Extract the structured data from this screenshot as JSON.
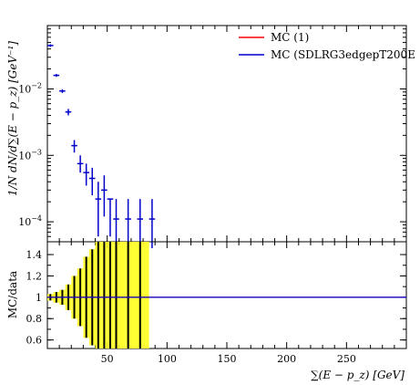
{
  "chart_data": [
    {
      "panel": "main",
      "type": "scatter",
      "ylabel": "1/N dN/d∑(E − p_z) [GeV⁻¹]",
      "yscale": "log",
      "ylim": [
        5e-05,
        0.09
      ],
      "yticks": [
        {
          "value": 0.0001,
          "base": "10",
          "exp": "−4"
        },
        {
          "value": 0.001,
          "base": "10",
          "exp": "−3"
        },
        {
          "value": 0.01,
          "base": "10",
          "exp": "−2"
        }
      ],
      "legend_position": "top-right",
      "series": [
        {
          "name": "MC (1)",
          "color": "#ff0000",
          "points": []
        },
        {
          "name": "MC (SDLRG3edgepT200E",
          "color": "#0000cc",
          "points": [
            {
              "x": 2.5,
              "xerr": 2.5,
              "y": 0.045,
              "ylo": 0.043,
              "yhi": 0.047
            },
            {
              "x": 7.5,
              "xerr": 2.5,
              "y": 0.016,
              "ylo": 0.0152,
              "yhi": 0.0168
            },
            {
              "x": 12.5,
              "xerr": 2.5,
              "y": 0.0093,
              "ylo": 0.0087,
              "yhi": 0.0099
            },
            {
              "x": 17.5,
              "xerr": 2.5,
              "y": 0.0045,
              "ylo": 0.004,
              "yhi": 0.005
            },
            {
              "x": 22.5,
              "xerr": 2.5,
              "y": 0.0014,
              "ylo": 0.0011,
              "yhi": 0.0017
            },
            {
              "x": 27.5,
              "xerr": 2.5,
              "y": 0.00075,
              "ylo": 0.00055,
              "yhi": 0.001
            },
            {
              "x": 32.5,
              "xerr": 2.5,
              "y": 0.00055,
              "ylo": 0.00035,
              "yhi": 0.00075
            },
            {
              "x": 37.5,
              "xerr": 2.5,
              "y": 0.00045,
              "ylo": 0.00025,
              "yhi": 0.00065
            },
            {
              "x": 42.5,
              "xerr": 2.5,
              "y": 0.00022,
              "ylo": 6e-05,
              "yhi": 0.0004
            },
            {
              "x": 47.5,
              "xerr": 2.5,
              "y": 0.0003,
              "ylo": 0.00012,
              "yhi": 0.0005
            },
            {
              "x": 52.5,
              "xerr": 2.5,
              "y": 0.00022,
              "ylo": 6e-05,
              "yhi": 0.00022
            },
            {
              "x": 57.5,
              "xerr": 2.5,
              "y": 0.00011,
              "ylo": 4e-05,
              "yhi": 0.00022
            },
            {
              "x": 67.5,
              "xerr": 2.5,
              "y": 0.00011,
              "ylo": 4e-05,
              "yhi": 0.00022
            },
            {
              "x": 77.5,
              "xerr": 2.5,
              "y": 0.00011,
              "ylo": 4e-05,
              "yhi": 0.00022
            },
            {
              "x": 87.5,
              "xerr": 2.5,
              "y": 0.00011,
              "ylo": 4e-05,
              "yhi": 0.00022
            }
          ]
        }
      ]
    },
    {
      "panel": "ratio",
      "type": "line",
      "ylabel": "MC/data",
      "xlabel": "∑(E − p_z) [GeV]",
      "xlim": [
        0,
        300
      ],
      "xticks": [
        50,
        100,
        150,
        200,
        250
      ],
      "ylim": [
        0.52,
        1.52
      ],
      "yticks": [
        "0.6",
        "0.8",
        "1",
        "1.2",
        "1.4"
      ],
      "reference_line": 1.0,
      "band_color": "#ffff33",
      "band": [
        {
          "x0": 0,
          "x1": 5,
          "lo": 0.97,
          "hi": 1.03
        },
        {
          "x0": 5,
          "x1": 10,
          "lo": 0.95,
          "hi": 1.05
        },
        {
          "x0": 10,
          "x1": 15,
          "lo": 0.93,
          "hi": 1.07
        },
        {
          "x0": 15,
          "x1": 20,
          "lo": 0.88,
          "hi": 1.12
        },
        {
          "x0": 20,
          "x1": 25,
          "lo": 0.8,
          "hi": 1.2
        },
        {
          "x0": 25,
          "x1": 30,
          "lo": 0.73,
          "hi": 1.27
        },
        {
          "x0": 30,
          "x1": 35,
          "lo": 0.62,
          "hi": 1.38
        },
        {
          "x0": 35,
          "x1": 40,
          "lo": 0.55,
          "hi": 1.45
        },
        {
          "x0": 40,
          "x1": 45,
          "lo": 0.52,
          "hi": 1.52
        },
        {
          "x0": 45,
          "x1": 50,
          "lo": 0.52,
          "hi": 1.52
        },
        {
          "x0": 50,
          "x1": 55,
          "lo": 0.52,
          "hi": 1.52
        },
        {
          "x0": 55,
          "x1": 60,
          "lo": 0.52,
          "hi": 1.52
        },
        {
          "x0": 60,
          "x1": 65,
          "lo": 0.52,
          "hi": 1.52
        },
        {
          "x0": 65,
          "x1": 70,
          "lo": 0.52,
          "hi": 1.52
        },
        {
          "x0": 70,
          "x1": 75,
          "lo": 0.52,
          "hi": 1.52
        },
        {
          "x0": 75,
          "x1": 80,
          "lo": 0.52,
          "hi": 1.52
        },
        {
          "x0": 80,
          "x1": 85,
          "lo": 0.52,
          "hi": 1.52
        }
      ],
      "error_bars": [
        {
          "x": 2.5,
          "lo": 0.97,
          "hi": 1.03
        },
        {
          "x": 7.5,
          "lo": 0.95,
          "hi": 1.05
        },
        {
          "x": 12.5,
          "lo": 0.93,
          "hi": 1.07
        },
        {
          "x": 17.5,
          "lo": 0.88,
          "hi": 1.12
        },
        {
          "x": 22.5,
          "lo": 0.8,
          "hi": 1.2
        },
        {
          "x": 27.5,
          "lo": 0.73,
          "hi": 1.27
        },
        {
          "x": 32.5,
          "lo": 0.62,
          "hi": 1.38
        },
        {
          "x": 37.5,
          "lo": 0.55,
          "hi": 1.45
        },
        {
          "x": 42.5,
          "lo": 0.52,
          "hi": 1.52
        },
        {
          "x": 47.5,
          "lo": 0.52,
          "hi": 1.52
        },
        {
          "x": 52.5,
          "lo": 0.52,
          "hi": 1.52
        },
        {
          "x": 57.5,
          "lo": 0.52,
          "hi": 1.52
        },
        {
          "x": 67.5,
          "lo": 0.52,
          "hi": 1.52
        },
        {
          "x": 77.5,
          "lo": 0.52,
          "hi": 1.52
        }
      ]
    }
  ]
}
